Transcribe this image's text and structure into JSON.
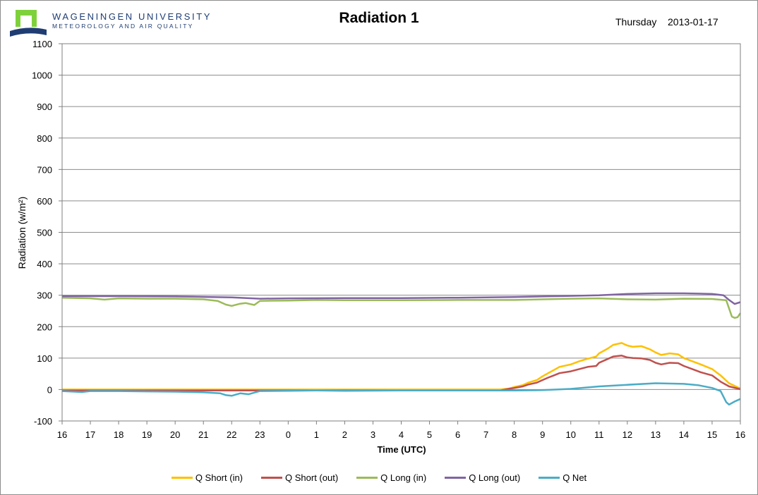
{
  "header": {
    "university": "WAGENINGEN UNIVERSITY",
    "department": "METEOROLOGY AND AIR QUALITY",
    "title": "Radiation 1",
    "day": "Thursday",
    "date": "2013-01-17"
  },
  "chart_data": {
    "type": "line",
    "title": "Radiation 1",
    "xlabel": "Time (UTC)",
    "ylabel": "Radiation (w/m²)",
    "ylim": [
      -100,
      1100
    ],
    "ytick_step": 100,
    "x_tick_labels": [
      "16",
      "17",
      "18",
      "19",
      "20",
      "21",
      "22",
      "23",
      "0",
      "1",
      "2",
      "3",
      "4",
      "5",
      "6",
      "7",
      "8",
      "9",
      "10",
      "11",
      "12",
      "13",
      "14",
      "15",
      "16"
    ],
    "x_unit": "hours since 16 UTC on previous day",
    "grid": "horizontal",
    "legend_position": "bottom",
    "series": [
      {
        "name": "Q Short (in)",
        "color": "#ffc000",
        "x": [
          0,
          15.5,
          15.8,
          16,
          16.3,
          16.5,
          16.8,
          17,
          17.2,
          17.4,
          17.6,
          18,
          18.3,
          18.6,
          18.9,
          19,
          19.3,
          19.5,
          19.8,
          20,
          20.2,
          20.5,
          20.8,
          21,
          21.2,
          21.5,
          21.8,
          22,
          22.3,
          22.6,
          23,
          23.3,
          23.6,
          24
        ],
        "y": [
          0,
          0,
          3,
          8,
          14,
          22,
          30,
          42,
          52,
          62,
          72,
          80,
          90,
          98,
          105,
          115,
          130,
          142,
          148,
          140,
          136,
          138,
          128,
          118,
          110,
          115,
          112,
          100,
          90,
          80,
          65,
          45,
          20,
          3
        ]
      },
      {
        "name": "Q Short (out)",
        "color": "#c0504d",
        "x": [
          0,
          15.5,
          15.8,
          16,
          16.3,
          16.5,
          16.8,
          17,
          17.2,
          17.4,
          17.6,
          18,
          18.3,
          18.6,
          18.9,
          19,
          19.3,
          19.5,
          19.8,
          20,
          20.2,
          20.5,
          20.8,
          21,
          21.2,
          21.5,
          21.8,
          22,
          22.3,
          22.6,
          23,
          23.3,
          23.6,
          24
        ],
        "y": [
          -3,
          -3,
          2,
          5,
          10,
          16,
          22,
          30,
          38,
          45,
          52,
          58,
          65,
          72,
          75,
          85,
          97,
          105,
          108,
          102,
          100,
          99,
          94,
          85,
          80,
          85,
          84,
          75,
          65,
          55,
          45,
          25,
          10,
          1
        ]
      },
      {
        "name": "Q Long (in)",
        "color": "#9bbb59",
        "x": [
          0,
          1,
          1.5,
          2,
          3,
          4,
          5,
          5.5,
          5.8,
          6,
          6.3,
          6.5,
          6.8,
          7,
          8,
          9,
          10,
          12,
          14,
          16,
          17,
          18,
          19,
          20,
          21,
          22,
          23,
          23.5,
          23.7,
          23.8,
          23.9,
          24
        ],
        "y": [
          292,
          290,
          286,
          290,
          289,
          289,
          287,
          282,
          270,
          266,
          273,
          275,
          269,
          282,
          283,
          285,
          284,
          284,
          285,
          285,
          287,
          289,
          290,
          287,
          286,
          289,
          288,
          284,
          232,
          228,
          230,
          243
        ]
      },
      {
        "name": "Q Long (out)",
        "color": "#8064a2",
        "x": [
          0,
          2,
          4,
          6,
          7,
          8,
          10,
          12,
          14,
          16,
          17,
          18,
          19,
          20,
          21,
          22,
          22.5,
          23,
          23.4,
          23.6,
          23.8,
          24
        ],
        "y": [
          297,
          297,
          296,
          293,
          289,
          290,
          291,
          291,
          292,
          294,
          296,
          298,
          300,
          304,
          306,
          306,
          305,
          304,
          300,
          285,
          272,
          278
        ]
      },
      {
        "name": "Q Net",
        "color": "#4bacc6",
        "x": [
          0,
          0.7,
          1,
          2,
          3,
          4,
          5,
          5.6,
          5.8,
          6,
          6.3,
          6.6,
          7,
          8,
          9,
          10,
          12,
          14,
          16,
          17,
          18,
          19,
          20,
          21,
          22,
          22.5,
          23,
          23.3,
          23.5,
          23.6,
          23.8,
          24
        ],
        "y": [
          -5,
          -8,
          -5,
          -5,
          -6,
          -7,
          -9,
          -12,
          -18,
          -20,
          -12,
          -15,
          -5,
          -4,
          -3,
          -4,
          -3,
          -3,
          -3,
          -2,
          2,
          10,
          15,
          20,
          18,
          14,
          5,
          -5,
          -40,
          -48,
          -38,
          -30
        ]
      }
    ]
  }
}
